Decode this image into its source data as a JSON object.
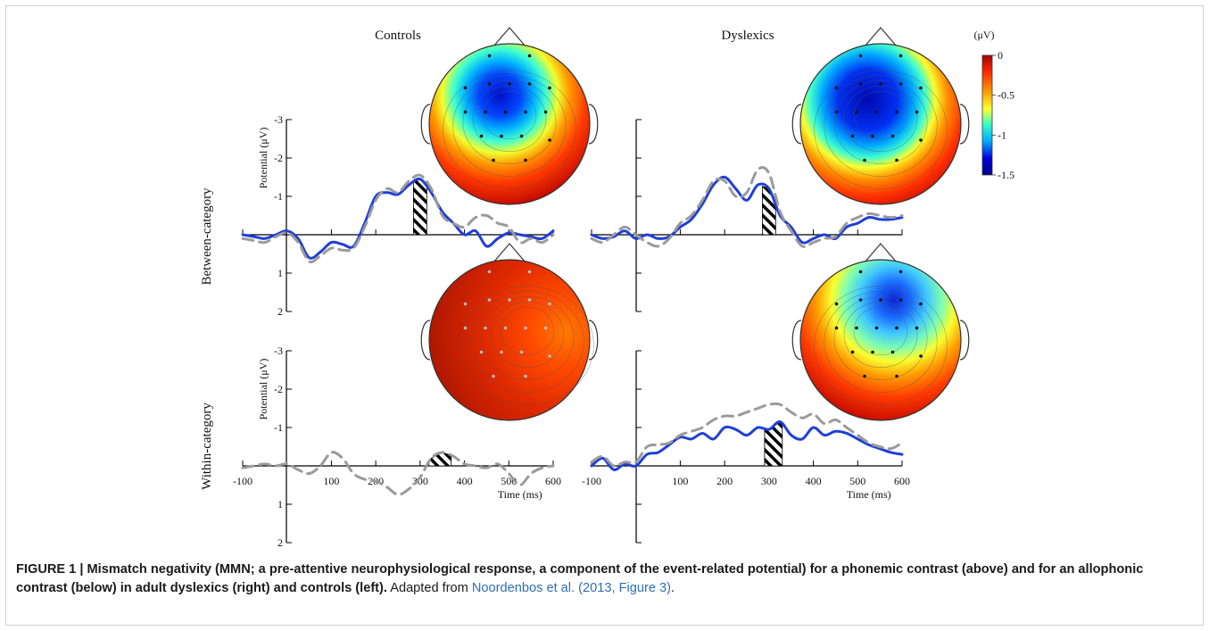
{
  "figure": {
    "col_labels": [
      "Controls",
      "Dyslexics"
    ],
    "row_labels": [
      "Between-category",
      "Within-category"
    ],
    "y_axis_label": "Potential (μV)",
    "x_axis_label": "Time (ms)",
    "y_ticks": [
      "-3",
      "-2",
      "-1",
      "1",
      "2"
    ],
    "x_ticks": [
      "-100",
      "100",
      "200",
      "300",
      "400",
      "500",
      "600"
    ],
    "colorbar": {
      "unit": "(μV)",
      "ticks": [
        "0",
        "-0.5",
        "-1",
        "-1.5"
      ],
      "range": [
        -1.5,
        0
      ],
      "colors": [
        "#a50000",
        "#ff2a00",
        "#ff9900",
        "#ffff33",
        "#33ffcc",
        "#00aaff",
        "#0000dd",
        "#00008a"
      ]
    },
    "colors": {
      "waveform": "#1f3fd6",
      "dashed": "#9a9a9a",
      "scalp_high": "#c81e00",
      "scalp_low": "#0a1fd0"
    }
  },
  "chart_data": [
    {
      "type": "line",
      "panel": "Controls / Between-category",
      "xlabel": "",
      "ylabel": "Potential (μV)",
      "xlim": [
        -100,
        600
      ],
      "ylim": [
        -3,
        2
      ],
      "x": [
        -100,
        -75,
        -50,
        -25,
        0,
        25,
        50,
        75,
        100,
        125,
        150,
        175,
        200,
        225,
        250,
        275,
        300,
        325,
        350,
        375,
        400,
        425,
        450,
        475,
        500,
        525,
        550,
        575,
        600
      ],
      "series": [
        {
          "style": "solid",
          "values": [
            0.0,
            0.05,
            0.1,
            0.0,
            -0.1,
            0.1,
            0.6,
            0.45,
            0.2,
            0.25,
            0.3,
            -0.3,
            -1.0,
            -1.1,
            -1.05,
            -1.3,
            -1.45,
            -1.1,
            -0.6,
            -0.3,
            0.0,
            -0.1,
            0.3,
            0.1,
            -0.05,
            0.0,
            0.05,
            0.1,
            -0.1
          ]
        },
        {
          "style": "dashed",
          "values": [
            0.1,
            0.15,
            0.2,
            0.05,
            -0.05,
            0.2,
            0.7,
            0.55,
            0.35,
            0.4,
            0.35,
            -0.2,
            -0.9,
            -1.2,
            -1.1,
            -1.4,
            -1.55,
            -1.2,
            -0.5,
            -0.3,
            -0.2,
            -0.45,
            -0.5,
            -0.3,
            -0.2,
            0.2,
            0.1,
            0.2,
            0.0
          ]
        }
      ],
      "shaded_window": [
        285,
        315
      ]
    },
    {
      "type": "line",
      "panel": "Dyslexics / Between-category",
      "xlabel": "",
      "ylabel": "",
      "xlim": [
        -100,
        600
      ],
      "ylim": [
        -3,
        2
      ],
      "x": [
        -100,
        -75,
        -50,
        -25,
        0,
        25,
        50,
        75,
        100,
        125,
        150,
        175,
        200,
        225,
        250,
        275,
        300,
        325,
        350,
        375,
        400,
        425,
        450,
        475,
        500,
        525,
        550,
        575,
        600
      ],
      "series": [
        {
          "style": "solid",
          "values": [
            0.0,
            0.1,
            0.05,
            -0.1,
            0.1,
            0.0,
            0.1,
            0.05,
            -0.2,
            -0.4,
            -0.8,
            -1.3,
            -1.5,
            -1.2,
            -0.9,
            -1.3,
            -1.2,
            -0.5,
            -0.2,
            0.2,
            0.1,
            0.0,
            0.1,
            -0.2,
            -0.3,
            -0.45,
            -0.4,
            -0.4,
            -0.45
          ]
        },
        {
          "style": "dashed",
          "values": [
            0.1,
            0.2,
            0.0,
            -0.2,
            0.0,
            0.2,
            0.3,
            0.1,
            -0.3,
            -0.5,
            -0.9,
            -1.4,
            -1.4,
            -1.0,
            -1.1,
            -1.7,
            -1.6,
            -0.6,
            -0.1,
            0.3,
            0.2,
            0.1,
            0.05,
            -0.3,
            -0.45,
            -0.55,
            -0.5,
            -0.45,
            -0.5
          ]
        }
      ],
      "shaded_window": [
        285,
        315
      ]
    },
    {
      "type": "line",
      "panel": "Controls / Within-category",
      "xlabel": "Time (ms)",
      "ylabel": "Potential (μV)",
      "xlim": [
        -100,
        600
      ],
      "ylim": [
        -3,
        2
      ],
      "x": [
        -100,
        -75,
        -50,
        -25,
        0,
        25,
        50,
        75,
        100,
        125,
        150,
        175,
        200,
        225,
        250,
        275,
        300,
        325,
        350,
        375,
        400,
        425,
        450,
        475,
        500,
        525,
        550,
        575,
        600
      ],
      "series": [
        {
          "style": "dashed",
          "values": [
            0.05,
            0.0,
            -0.05,
            0.0,
            -0.05,
            0.1,
            0.2,
            0.0,
            -0.35,
            -0.2,
            0.2,
            0.35,
            0.4,
            0.55,
            0.75,
            0.6,
            0.3,
            -0.2,
            -0.35,
            -0.25,
            -0.05,
            0.0,
            0.05,
            -0.05,
            0.2,
            0.5,
            0.2,
            0.05,
            0.0
          ]
        }
      ],
      "shaded_window": [
        320,
        370
      ]
    },
    {
      "type": "line",
      "panel": "Dyslexics / Within-category",
      "xlabel": "Time (ms)",
      "ylabel": "",
      "xlim": [
        -100,
        600
      ],
      "ylim": [
        -3,
        2
      ],
      "x": [
        -100,
        -75,
        -50,
        -25,
        0,
        25,
        50,
        75,
        100,
        125,
        150,
        175,
        200,
        225,
        250,
        275,
        300,
        325,
        350,
        375,
        400,
        425,
        450,
        475,
        500,
        525,
        550,
        575,
        600
      ],
      "series": [
        {
          "style": "solid",
          "values": [
            0.0,
            -0.2,
            0.1,
            -0.05,
            0.0,
            -0.3,
            -0.35,
            -0.55,
            -0.75,
            -0.7,
            -0.85,
            -0.7,
            -1.0,
            -0.95,
            -0.8,
            -1.0,
            -0.95,
            -1.15,
            -0.8,
            -0.7,
            -1.0,
            -0.8,
            -0.9,
            -0.85,
            -0.7,
            -0.55,
            -0.45,
            -0.35,
            -0.3
          ]
        },
        {
          "style": "dashed",
          "values": [
            -0.1,
            -0.25,
            0.0,
            -0.1,
            -0.1,
            -0.5,
            -0.55,
            -0.6,
            -0.8,
            -0.9,
            -1.0,
            -1.2,
            -1.3,
            -1.3,
            -1.4,
            -1.5,
            -1.6,
            -1.6,
            -1.4,
            -1.25,
            -1.35,
            -1.1,
            -1.2,
            -1.0,
            -0.8,
            -0.6,
            -0.5,
            -0.45,
            -0.6
          ]
        }
      ],
      "shaded_window": [
        290,
        330
      ]
    }
  ],
  "caption": {
    "bold": "FIGURE 1 | Mismatch negativity (MMN; a pre-attentive neurophysiological response, a component of the event-related potential) for a phonemic contrast (above) and for an allophonic contrast (below) in adult dyslexics (right) and controls (left).",
    "adapted_pre": "Adapted from ",
    "source": "Noordenbos et al. (2013, Figure 3)",
    "adapted_post": "."
  }
}
